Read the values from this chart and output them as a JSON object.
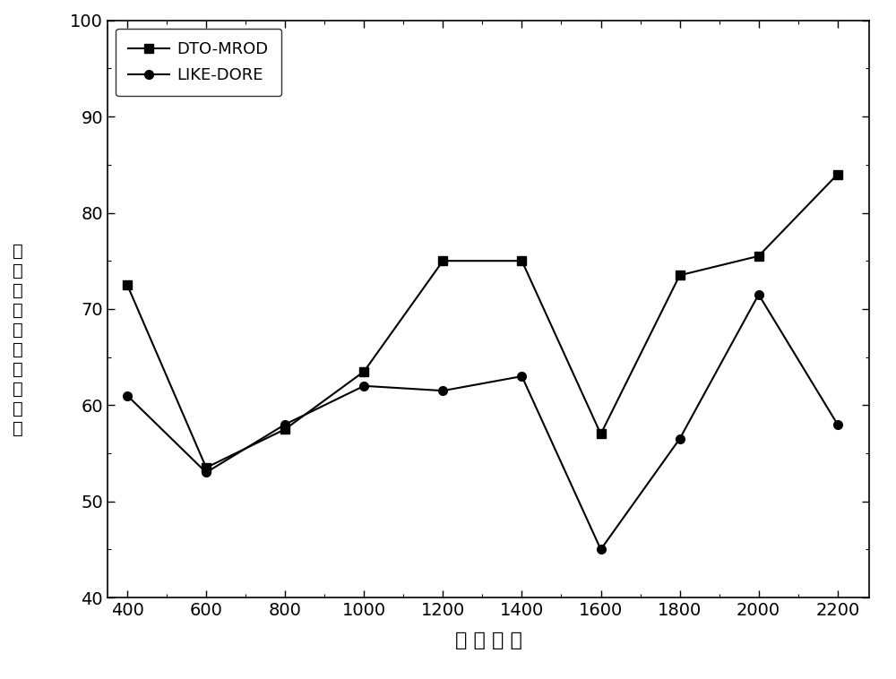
{
  "x": [
    400,
    600,
    800,
    1000,
    1200,
    1400,
    1600,
    1800,
    2000,
    2200
  ],
  "dto_mrod": [
    72.5,
    53.5,
    57.5,
    63.5,
    75,
    75,
    57,
    73.5,
    75.5,
    84
  ],
  "like_dore": [
    61,
    53,
    58,
    62,
    61.5,
    63,
    45,
    56.5,
    71.5,
    58
  ],
  "xlabel": "节点数量",
  "ylabel_chars": [
    "网",
    "络",
    "连",
    "通",
    "率",
    "（",
    "百",
    "分",
    "比",
    "）"
  ],
  "ylim": [
    40,
    100
  ],
  "xlim": [
    350,
    2280
  ],
  "xticks": [
    400,
    600,
    800,
    1000,
    1200,
    1400,
    1600,
    1800,
    2000,
    2200
  ],
  "yticks": [
    40,
    50,
    60,
    70,
    80,
    90,
    100
  ],
  "legend_labels": [
    "DTO-MROD",
    "LIKE-DORE"
  ],
  "line_color": "#000000",
  "marker_dto": "s",
  "marker_like": "o",
  "marker_size": 7,
  "linewidth": 1.5,
  "background_color": "#ffffff",
  "xlabel_spaced": "节 点 数 量"
}
